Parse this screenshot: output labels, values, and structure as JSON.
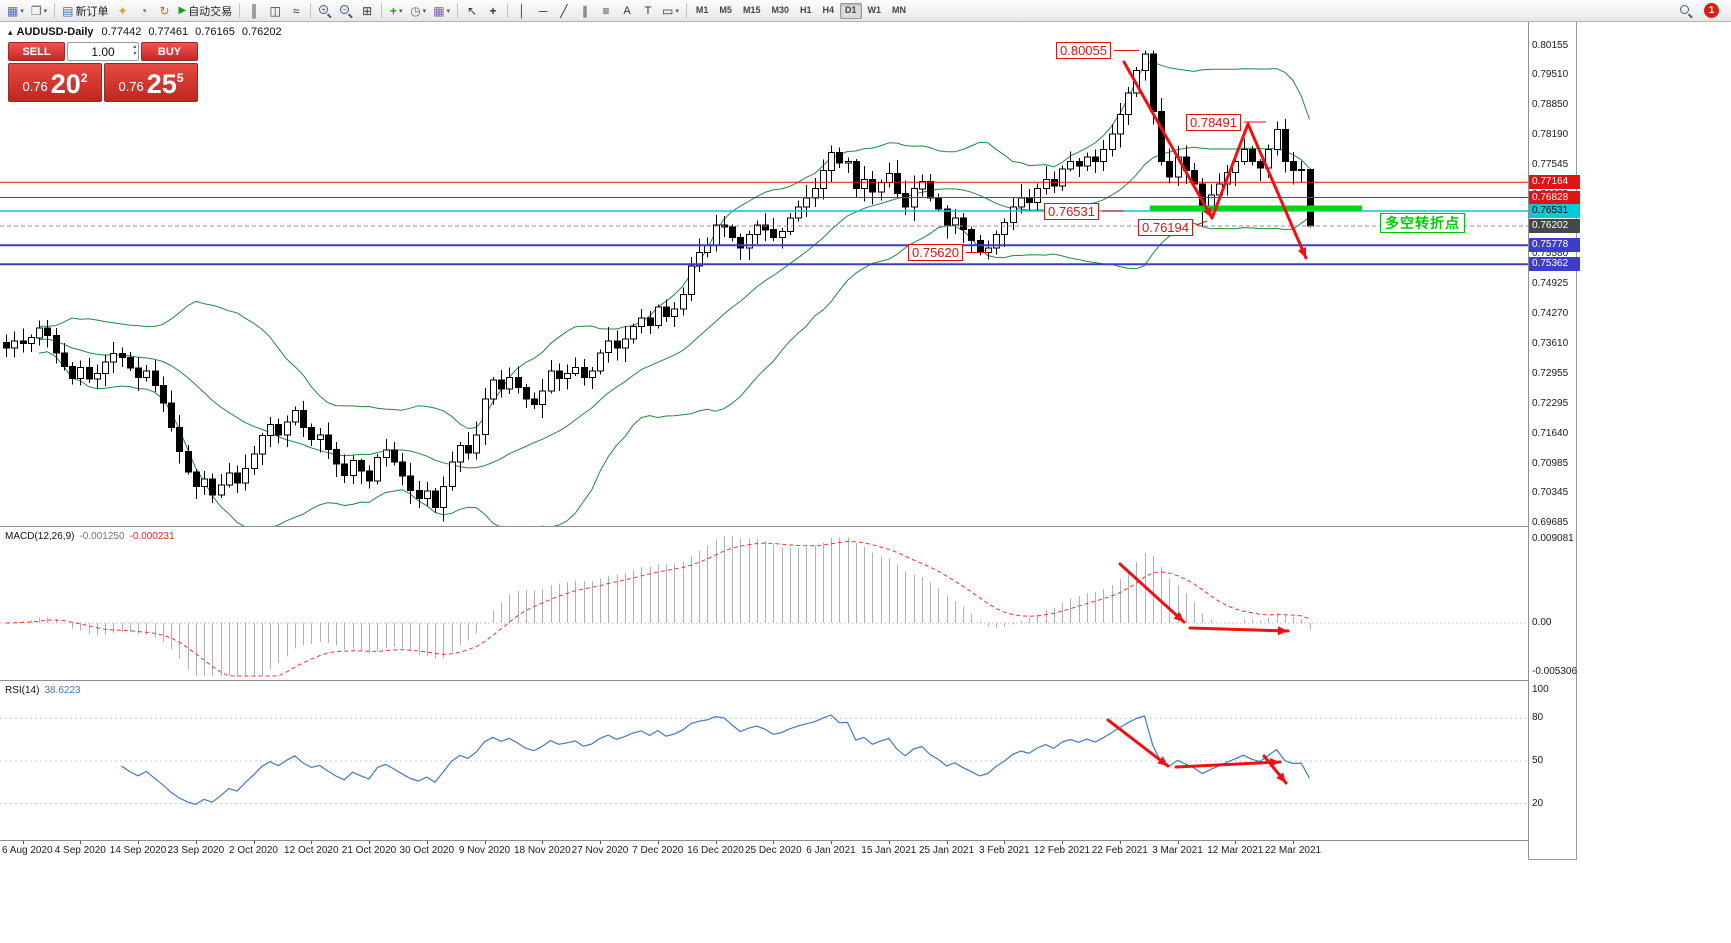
{
  "toolbar": {
    "new_order_label": "新订单",
    "auto_trading_label": "自动交易",
    "timeframes": [
      "M1",
      "M5",
      "M15",
      "M30",
      "H1",
      "H4",
      "D1",
      "W1",
      "MN"
    ],
    "active_timeframe": "D1",
    "notification_count": "1"
  },
  "icons": {
    "tri_up": "▴",
    "caret": "▾",
    "caret_up": "▴",
    "caret_down": "▾",
    "new_chart": "▦",
    "profiles_win": "❒",
    "order_doc": "▤",
    "profile": "✦",
    "market_watch": "◔",
    "refresh": "↻",
    "play": "▶",
    "bar_chart": "║",
    "candles": "◫",
    "line_chart": "≈",
    "tile": "⊞",
    "indicator_plus": "+",
    "clock": "◷",
    "template": "▦",
    "cursor": "↖",
    "crosshair": "+",
    "vline": "│",
    "hline": "─",
    "tline": "╱",
    "channel": "∥",
    "fibo": "≡",
    "text_tool": "A",
    "label_tool": "T",
    "shapes": "▭",
    "plus_sign": "+",
    "minus_sign": "−"
  },
  "chart": {
    "symbol_title": "AUDUSD-Daily",
    "ohlc": {
      "open": "0.77442",
      "high": "0.77461",
      "low": "0.76165",
      "close": "0.76202"
    },
    "one_click": {
      "sell_label": "SELL",
      "buy_label": "BUY",
      "volume": "1.00",
      "sell_small": "0.76",
      "sell_big": "20",
      "sell_sup": "2",
      "buy_small": "0.76",
      "buy_big": "25",
      "buy_sup": "5"
    },
    "price_labels": [
      "0.80055",
      "0.78491",
      "0.76531",
      "0.76194",
      "0.75620"
    ],
    "turning_point_label": "多空转折点",
    "turning_line_color": "#00d800",
    "arrow_color": "#ef1111",
    "hlines": [
      {
        "price": "0.77164",
        "color": "#e11212",
        "width": 1,
        "tag_fg": "#ffffff"
      },
      {
        "price": "0.76828",
        "color": "#e11212",
        "width": 1,
        "tag_fg": "#ffffff"
      },
      {
        "price": "0.76531",
        "color": "#00ccd4",
        "width": 1.5,
        "tag_fg": "#000000"
      },
      {
        "price": "0.75778",
        "color": "#3d3dcc",
        "width": 2,
        "tag_fg": "#ffffff"
      },
      {
        "price": "0.75362",
        "color": "#3d3dcc",
        "width": 2,
        "tag_fg": "#ffffff"
      }
    ],
    "current_price": "0.76202",
    "current_tag_bg": "#43484d",
    "axis_price_labels": [
      "0.80155",
      "0.79510",
      "0.78850",
      "0.78190",
      "0.77545",
      "0.76885",
      "0.76225",
      "0.75580",
      "0.74925",
      "0.74270",
      "0.73610",
      "0.72955",
      "0.72295",
      "0.71640",
      "0.70985",
      "0.70345",
      "0.69685"
    ]
  },
  "macd": {
    "name": "MACD(12,26,9)",
    "value_main": "-0.001250",
    "value_signal": "-0.000231",
    "axis": [
      "0.009081",
      "0.00",
      "-0.005306"
    ]
  },
  "rsi": {
    "name": "RSI(14)",
    "value": "38.6223",
    "axis": [
      "100",
      "80",
      "50",
      "20"
    ],
    "levels": [
      80,
      50,
      20
    ]
  },
  "time_axis": [
    "6 Aug 2020",
    "4 Sep 2020",
    "14 Sep 2020",
    "23 Sep 2020",
    "2 Oct 2020",
    "12 Oct 2020",
    "21 Oct 2020",
    "30 Oct 2020",
    "9 Nov 2020",
    "18 Nov 2020",
    "27 Nov 2020",
    "7 Dec 2020",
    "16 Dec 2020",
    "25 Dec 2020",
    "6 Jan 2021",
    "15 Jan 2021",
    "25 Jan 2021",
    "3 Feb 2021",
    "12 Feb 2021",
    "22 Feb 2021",
    "3 Mar 2021",
    "12 Mar 2021",
    "22 Mar 2021"
  ],
  "chart_data": {
    "type": "candlestick",
    "symbol": "AUDUSD",
    "timeframe": "Daily",
    "price_range": [
      0.69685,
      0.80155
    ],
    "closes": [
      0.7352,
      0.7368,
      0.7362,
      0.7375,
      0.7396,
      0.738,
      0.7341,
      0.7312,
      0.7285,
      0.731,
      0.7284,
      0.7296,
      0.7322,
      0.734,
      0.7332,
      0.7308,
      0.7288,
      0.7302,
      0.727,
      0.7232,
      0.7178,
      0.7125,
      0.708,
      0.7048,
      0.7065,
      0.703,
      0.7052,
      0.7078,
      0.7056,
      0.7088,
      0.712,
      0.716,
      0.7185,
      0.7162,
      0.719,
      0.7215,
      0.7178,
      0.7152,
      0.7162,
      0.713,
      0.7098,
      0.7072,
      0.7105,
      0.7082,
      0.706,
      0.7112,
      0.7128,
      0.7102,
      0.7072,
      0.704,
      0.7022,
      0.7038,
      0.7002,
      0.7048,
      0.7102,
      0.7138,
      0.7122,
      0.7162,
      0.724,
      0.7282,
      0.7262,
      0.7288,
      0.7266,
      0.724,
      0.7228,
      0.7258,
      0.7302,
      0.7285,
      0.7296,
      0.731,
      0.7288,
      0.7302,
      0.7342,
      0.7368,
      0.7352,
      0.7372,
      0.74,
      0.7418,
      0.7402,
      0.7442,
      0.7422,
      0.7438,
      0.747,
      0.7532,
      0.7562,
      0.7578,
      0.7622,
      0.7618,
      0.7595,
      0.7572,
      0.7602,
      0.7622,
      0.7612,
      0.7595,
      0.7608,
      0.7638,
      0.7662,
      0.7682,
      0.7702,
      0.7742,
      0.7782,
      0.7758,
      0.7762,
      0.7702,
      0.7722,
      0.7695,
      0.7716,
      0.7735,
      0.7692,
      0.7662,
      0.7702,
      0.7718,
      0.7682,
      0.7658,
      0.7622,
      0.7638,
      0.7612,
      0.7588,
      0.7562,
      0.7572,
      0.7602,
      0.7628,
      0.7662,
      0.7682,
      0.7672,
      0.7702,
      0.7722,
      0.7708,
      0.7745,
      0.7762,
      0.7752,
      0.7772,
      0.7762,
      0.7788,
      0.7822,
      0.7865,
      0.7912,
      0.7962,
      0.7998,
      0.7872,
      0.7762,
      0.7728,
      0.7772,
      0.7742,
      0.7712,
      0.7662,
      0.7688,
      0.7712,
      0.7738,
      0.7762,
      0.7788,
      0.7762,
      0.7748,
      0.7788,
      0.7832,
      0.7762,
      0.7742,
      0.7744,
      0.76202
    ],
    "overrides": {
      "4": {
        "h": 0.7413
      },
      "52": {
        "l": 0.699
      },
      "138": {
        "h": 0.80055
      },
      "145": {
        "l": 0.76194
      },
      "154": {
        "h": 0.78491
      },
      "158": {
        "o": 0.77442,
        "h": 0.77461,
        "l": 0.76165
      }
    },
    "indicators": {
      "bollinger": {
        "period": 20,
        "deviation": 2
      },
      "macd": {
        "fast": 12,
        "slow": 26,
        "signal": 9
      },
      "rsi": {
        "period": 14
      }
    },
    "levels": {
      "resistance": [
        0.77164,
        0.76828
      ],
      "pivot": 0.76531,
      "support": [
        0.75778,
        0.7562,
        0.75362
      ]
    },
    "swing_points": {
      "high_1": 0.80055,
      "low_1": 0.76194,
      "high_2": 0.78491,
      "last_close": 0.76202
    }
  }
}
